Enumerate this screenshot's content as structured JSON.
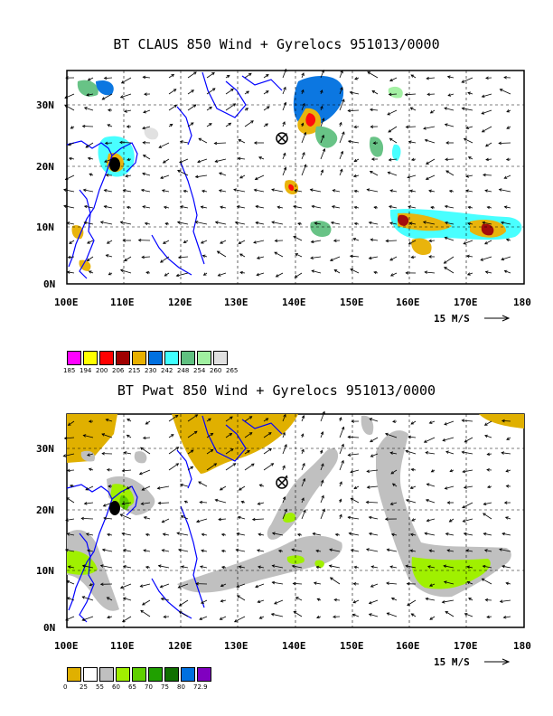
{
  "panels": [
    {
      "title": "BT CLAUS 850 Wind + Gyrelocs 951013/0000",
      "lat_labels": [
        "30N",
        "20N",
        "10N",
        "0N"
      ],
      "lon_labels": [
        "100E",
        "110E",
        "120E",
        "130E",
        "140E",
        "150E",
        "160E",
        "170E",
        "180"
      ],
      "scale_label": "15 M/S",
      "legend": {
        "colors": [
          "#ff00ff",
          "#ffff00",
          "#ff0000",
          "#a00000",
          "#e8b000",
          "#0070e0",
          "#40ffff",
          "#60c080",
          "#a0f0a0",
          "#e0e0e0"
        ],
        "ticks": [
          "185",
          "194",
          "200",
          "206",
          "215",
          "230",
          "242",
          "248",
          "254",
          "260",
          "265"
        ]
      }
    },
    {
      "title": "BT Pwat 850 Wind + Gyrelocs 951013/0000",
      "lat_labels": [
        "30N",
        "20N",
        "10N",
        "0N"
      ],
      "lon_labels": [
        "100E",
        "110E",
        "120E",
        "130E",
        "140E",
        "150E",
        "160E",
        "170E",
        "180"
      ],
      "scale_label": "15 M/S",
      "legend": {
        "colors": [
          "#e0b000",
          "#ffffff",
          "#c0c0c0",
          "#a0f000",
          "#60d000",
          "#20a000",
          "#107000",
          "#0070e0",
          "#8000c0"
        ],
        "ticks": [
          "0",
          "25",
          "55",
          "60",
          "65",
          "70",
          "75",
          "80",
          "72.9"
        ]
      }
    }
  ]
}
